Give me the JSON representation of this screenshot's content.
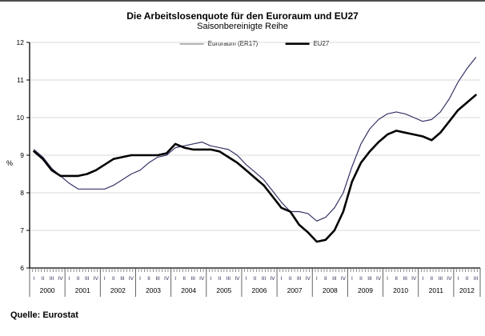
{
  "page": {
    "title": "Die Arbeitslosenquote für den Euroraum und EU27",
    "subtitle": "Saisonbereinigte Reihe",
    "source": "Quelle: Eurostat"
  },
  "legend": [
    {
      "label": "Euroraum (ER17)",
      "swatch_color": "#b3b3b8",
      "swatch_thickness": 2
    },
    {
      "label": "EU27",
      "swatch_color": "#000000",
      "swatch_thickness": 3
    }
  ],
  "colors": {
    "grid": "#d9d9d9",
    "axis": "#000000",
    "quarter_label": "#2b2b55",
    "year_label": "#000000",
    "top_rule": "#4d4d4d"
  },
  "chart_data": {
    "type": "line",
    "title": "Die Arbeitslosenquote für den Euroraum und EU27",
    "subtitle": "Saisonbereinigte Reihe",
    "ylabel": "%",
    "ylim": [
      6,
      12
    ],
    "yticks": [
      6,
      7,
      8,
      9,
      10,
      11,
      12
    ],
    "grid": true,
    "legend_position": "top",
    "x_unit": "quarters",
    "years": [
      2000,
      2001,
      2002,
      2003,
      2004,
      2005,
      2006,
      2007,
      2008,
      2009,
      2010,
      2011,
      2012
    ],
    "quarter_label_pattern": [
      "I",
      "II",
      "III",
      "IV"
    ],
    "n_quarters": 51,
    "x_note": "2000Q1 through 2012Q3, seasonally adjusted",
    "series": [
      {
        "name": "Euroraum (ER17)",
        "color": "#333366",
        "width": 1.2,
        "values": [
          9.15,
          8.95,
          8.65,
          8.45,
          8.25,
          8.1,
          8.1,
          8.1,
          8.1,
          8.2,
          8.35,
          8.5,
          8.6,
          8.8,
          8.95,
          9.0,
          9.2,
          9.25,
          9.3,
          9.35,
          9.25,
          9.2,
          9.15,
          9.0,
          8.75,
          8.55,
          8.35,
          8.05,
          7.75,
          7.5,
          7.5,
          7.45,
          7.25,
          7.35,
          7.6,
          8.0,
          8.7,
          9.3,
          9.7,
          9.95,
          10.1,
          10.15,
          10.1,
          10.0,
          9.9,
          9.95,
          10.15,
          10.5,
          10.95,
          11.3,
          11.6
        ]
      },
      {
        "name": "EU27",
        "color": "#000000",
        "width": 2.6,
        "values": [
          9.1,
          8.9,
          8.6,
          8.45,
          8.45,
          8.45,
          8.5,
          8.6,
          8.75,
          8.9,
          8.95,
          9.0,
          9.0,
          9.0,
          9.0,
          9.05,
          9.3,
          9.2,
          9.15,
          9.15,
          9.15,
          9.1,
          8.95,
          8.8,
          8.6,
          8.4,
          8.2,
          7.9,
          7.6,
          7.5,
          7.15,
          6.95,
          6.7,
          6.75,
          7.0,
          7.5,
          8.3,
          8.8,
          9.1,
          9.35,
          9.55,
          9.65,
          9.6,
          9.55,
          9.5,
          9.4,
          9.6,
          9.9,
          10.2,
          10.4,
          10.6
        ]
      }
    ]
  }
}
